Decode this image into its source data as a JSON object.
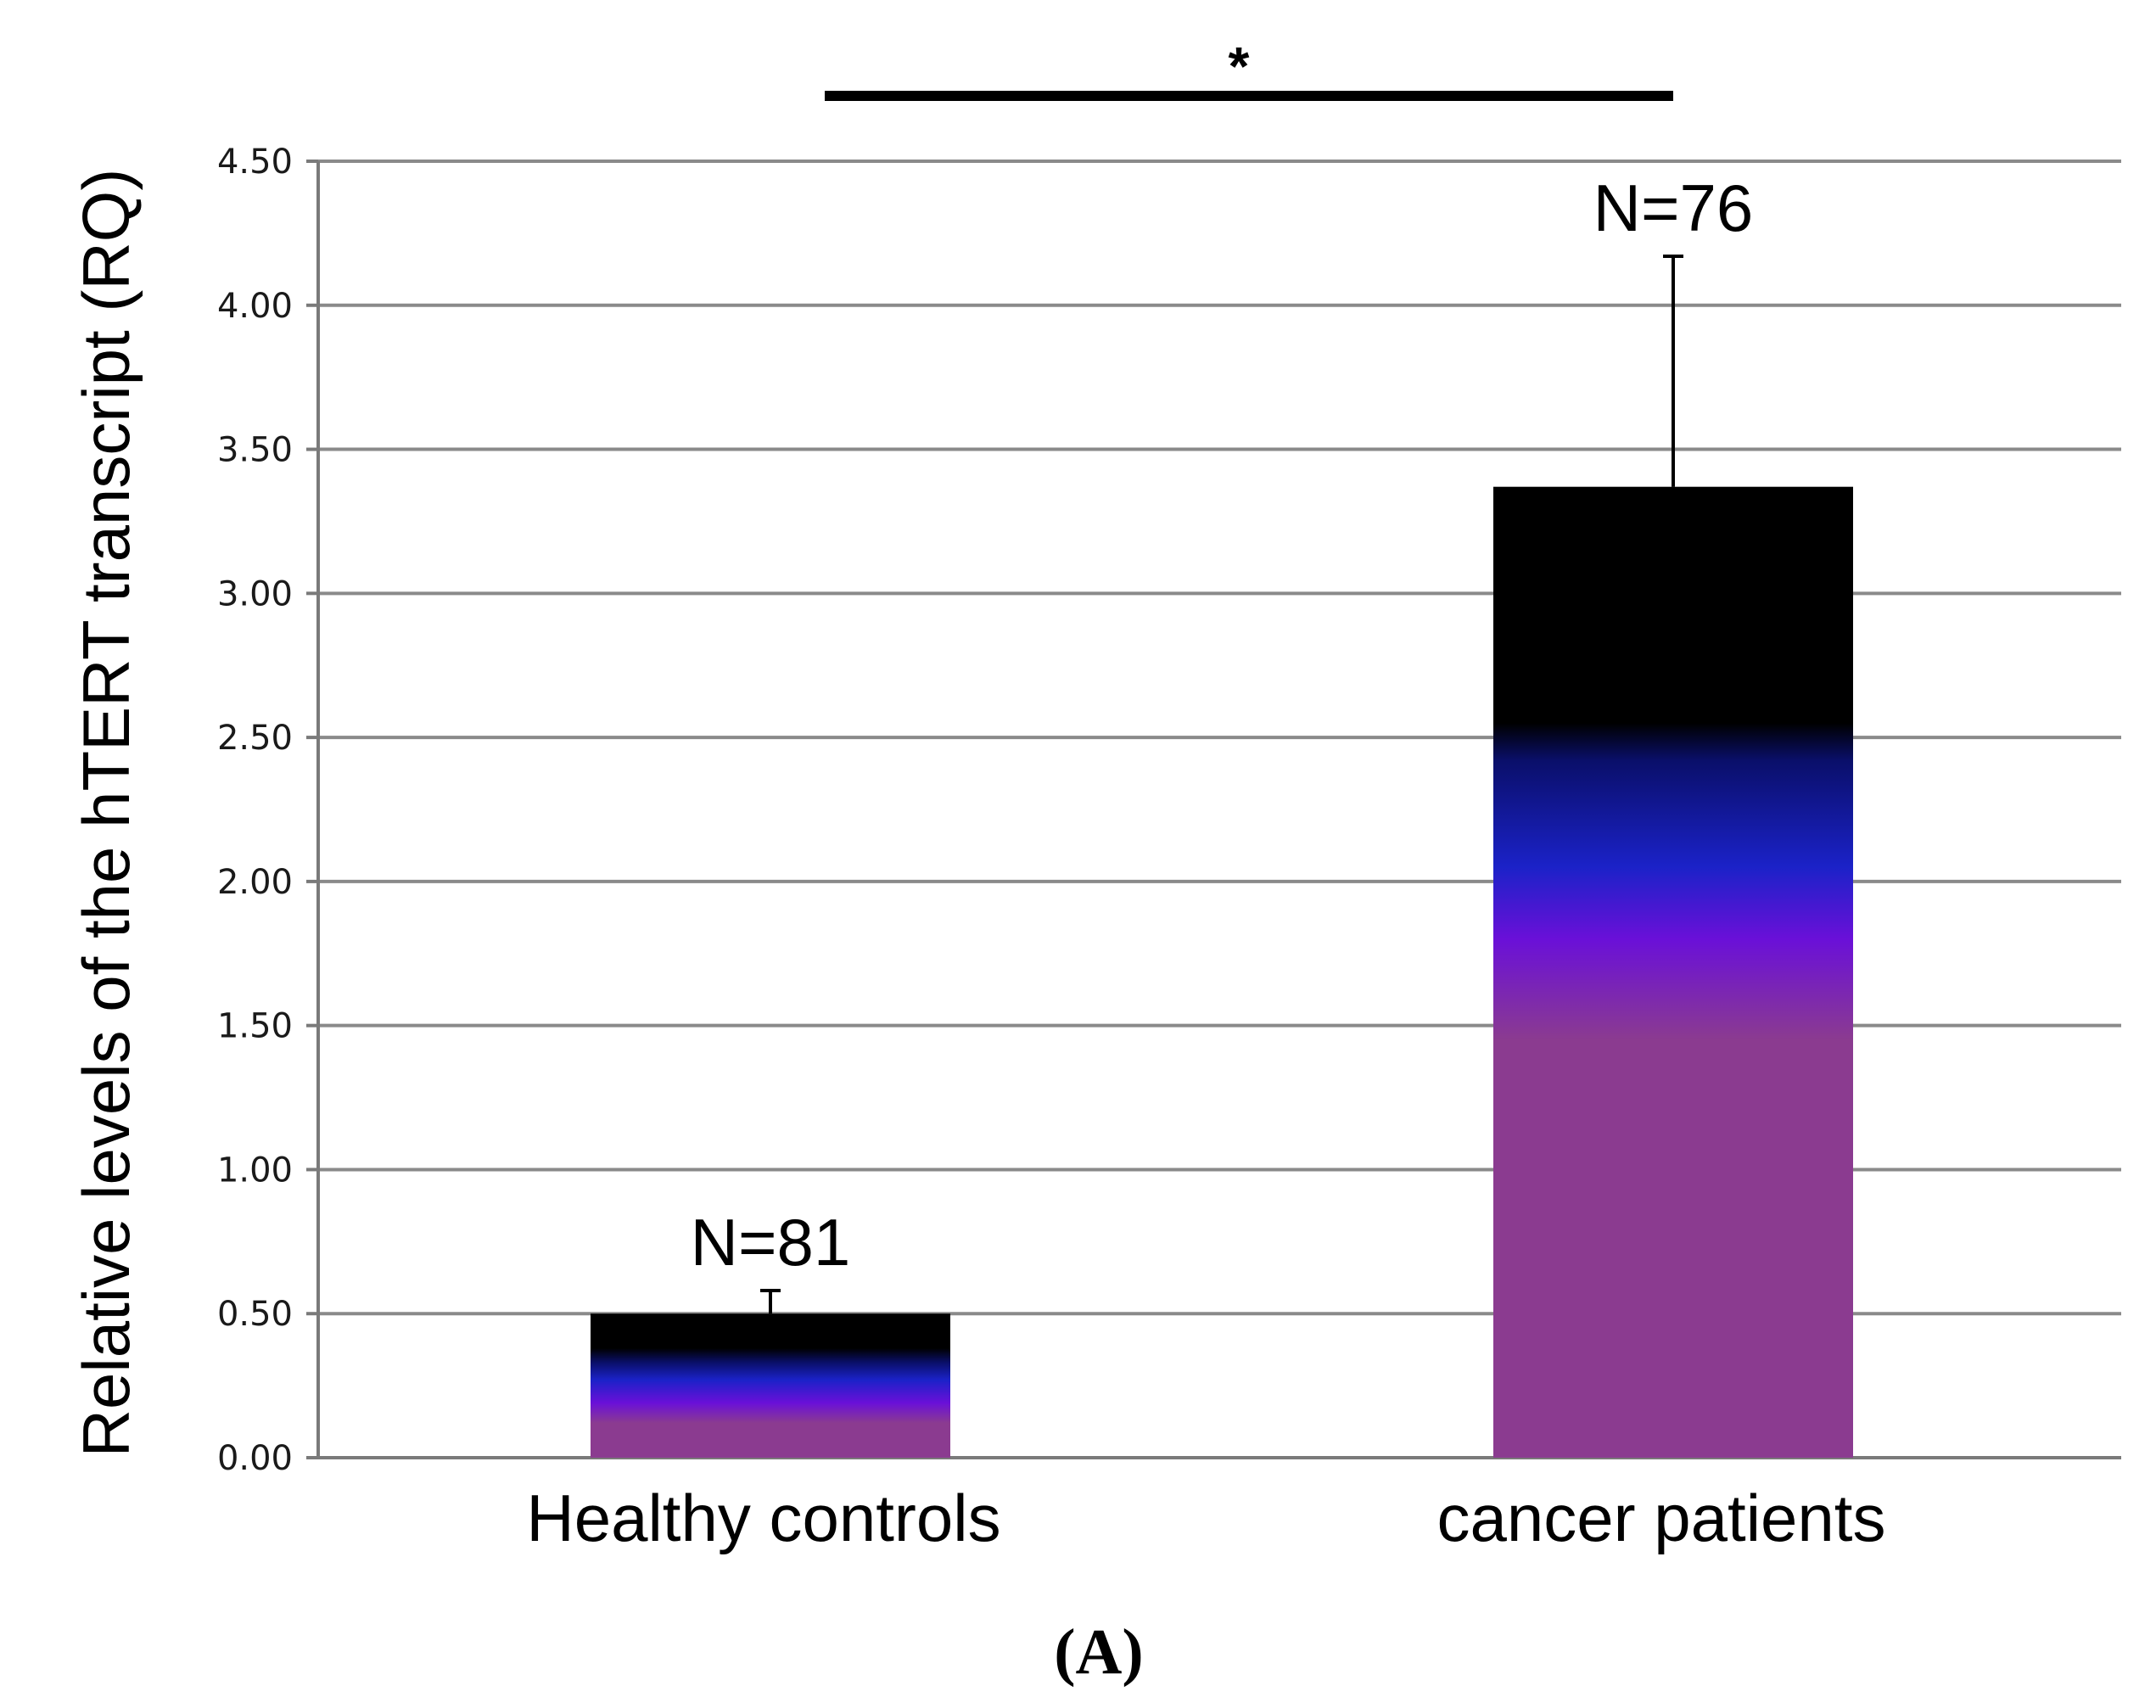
{
  "colors": {
    "bar_top": "#000000",
    "bar_mid_blue": "#1b22c8",
    "bar_mid_violet": "#6a10d8",
    "bar_bottom": "#8b3b90",
    "grid": "#8a8a8a",
    "axis": "#7a7a7a",
    "text": "#000000"
  },
  "chart_data": {
    "type": "bar",
    "title": "",
    "xlabel": "",
    "ylabel": "Relative levels of the hTERT transcript (RQ)",
    "ylim": [
      0,
      4.5
    ],
    "yticks": [
      0,
      0.5,
      1.0,
      1.5,
      2.0,
      2.5,
      3.0,
      3.5,
      4.0,
      4.5
    ],
    "ytick_labels": [
      "0.00",
      "0.50",
      "1.00",
      "1.50",
      "2.00",
      "2.50",
      "3.00",
      "3.50",
      "4.00",
      "4.50"
    ],
    "grid": true,
    "categories": [
      "Healthy controls",
      "cancer patients"
    ],
    "values": [
      0.5,
      3.37
    ],
    "error_upper": [
      0.08,
      0.8
    ],
    "n_labels": [
      "N=81",
      "N=76"
    ],
    "significance": {
      "between": [
        "Healthy controls",
        "cancer patients"
      ],
      "marker": "*"
    },
    "panel_label": "(A)"
  }
}
